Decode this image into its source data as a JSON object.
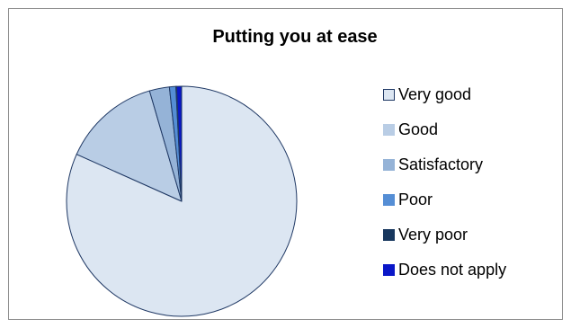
{
  "chart_data": {
    "type": "pie",
    "title": "Putting you at ease",
    "categories": [
      "Very good",
      "Good",
      "Satisfactory",
      "Poor",
      "Very poor",
      "Does not apply"
    ],
    "values": [
      81.7,
      13.8,
      2.8,
      0.9,
      0.1,
      0.7
    ],
    "colors": [
      "#dce6f2",
      "#b9cde5",
      "#95b3d7",
      "#558ed5",
      "#17375e",
      "#0a17c8"
    ],
    "start_angle_deg": 0,
    "direction": "clockwise",
    "legend_position": "right"
  }
}
